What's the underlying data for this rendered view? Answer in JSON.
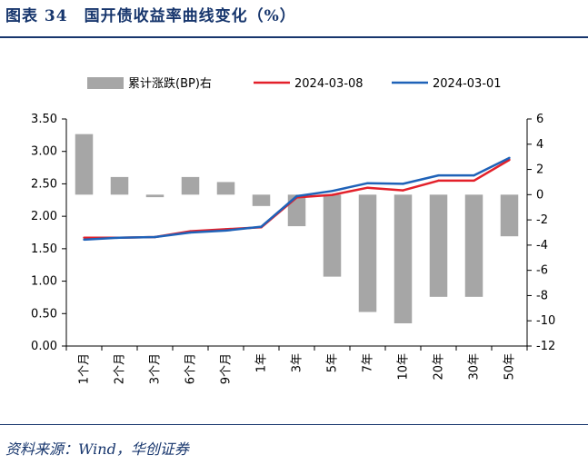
{
  "header": {
    "title": "图表 34　国开债收益率曲线变化（%）"
  },
  "footer": {
    "source": "资料来源：Wind，华创证券"
  },
  "colors": {
    "title": "#17366d",
    "bar": "#a6a6a6",
    "line_0308": "#e3202a",
    "line_0301": "#1f62b8"
  },
  "chart_data": {
    "type": "bar+line",
    "categories": [
      "1个月",
      "2个月",
      "3个月",
      "6个月",
      "9个月",
      "1年",
      "3年",
      "5年",
      "7年",
      "10年",
      "20年",
      "30年",
      "50年"
    ],
    "series": [
      {
        "name": "累计涨跌(BP)右",
        "type": "bar",
        "axis": "right",
        "values": [
          4.8,
          1.4,
          -0.2,
          1.4,
          1.0,
          -0.9,
          -2.5,
          -6.5,
          -9.3,
          -10.2,
          -8.1,
          -8.1,
          -3.3
        ]
      },
      {
        "name": "2024-03-08",
        "type": "line",
        "axis": "left",
        "values": [
          1.67,
          1.67,
          1.68,
          1.77,
          1.8,
          1.83,
          2.29,
          2.33,
          2.44,
          2.4,
          2.55,
          2.55,
          2.87
        ]
      },
      {
        "name": "2024-03-01",
        "type": "line",
        "axis": "left",
        "values": [
          1.64,
          1.67,
          1.68,
          1.75,
          1.78,
          1.84,
          2.31,
          2.39,
          2.51,
          2.5,
          2.63,
          2.63,
          2.9
        ]
      }
    ],
    "y_left": {
      "ylim": [
        0,
        3.5
      ],
      "ticks": [
        "0.00",
        "0.50",
        "1.00",
        "1.50",
        "2.00",
        "2.50",
        "3.00",
        "3.50"
      ]
    },
    "y_right": {
      "ylim": [
        -12,
        6
      ],
      "ticks": [
        "-12",
        "-10",
        "-8",
        "-6",
        "-4",
        "-2",
        "0",
        "2",
        "4",
        "6"
      ]
    },
    "legend_position": "top"
  }
}
